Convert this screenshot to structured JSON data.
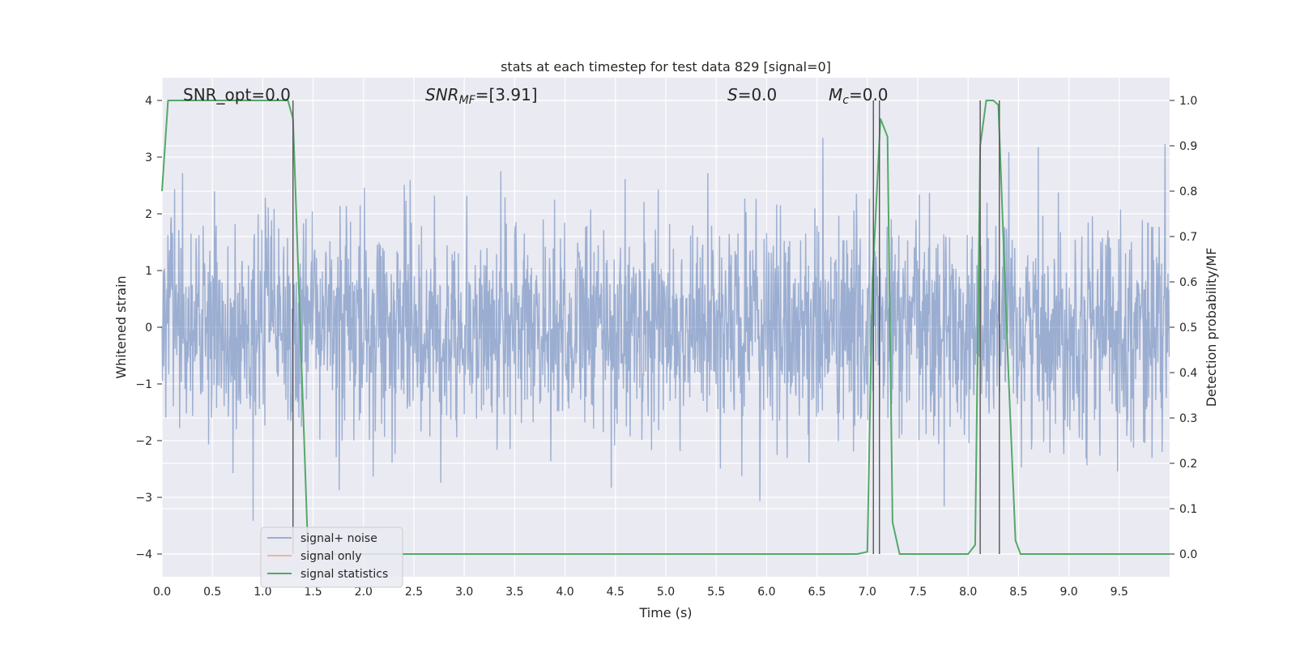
{
  "chart_data": {
    "type": "line",
    "title": "stats at each timestep for test data 829 [signal=0]",
    "xlabel": "Time (s)",
    "ylabel_left": "Whitened strain",
    "ylabel_right": "Detection probability/MF",
    "xlim": [
      0,
      10
    ],
    "ylim_left": [
      -4.4,
      4.4
    ],
    "ylim_right": [
      -0.05,
      1.05
    ],
    "x_ticks": [
      "0.0",
      "0.5",
      "1.0",
      "1.5",
      "2.0",
      "2.5",
      "3.0",
      "3.5",
      "4.0",
      "4.5",
      "5.0",
      "5.5",
      "6.0",
      "6.5",
      "7.0",
      "7.5",
      "8.0",
      "8.5",
      "9.0",
      "9.5"
    ],
    "x_tick_values": [
      0,
      0.5,
      1,
      1.5,
      2,
      2.5,
      3,
      3.5,
      4,
      4.5,
      5,
      5.5,
      6,
      6.5,
      7,
      7.5,
      8,
      8.5,
      9,
      9.5
    ],
    "y_ticks_left": [
      "4",
      "3",
      "2",
      "1",
      "0",
      "−1",
      "−2",
      "−3",
      "−4"
    ],
    "y_tick_values_left": [
      4,
      3,
      2,
      1,
      0,
      -1,
      -2,
      -3,
      -4
    ],
    "y_ticks_right": [
      "1.0",
      "0.9",
      "0.8",
      "0.7",
      "0.6",
      "0.5",
      "0.4",
      "0.3",
      "0.2",
      "0.1",
      "0.0"
    ],
    "y_tick_values_right": [
      1.0,
      0.9,
      0.8,
      0.7,
      0.6,
      0.5,
      0.4,
      0.3,
      0.2,
      0.1,
      0.0
    ],
    "grid": true,
    "background": "#eaeaf2",
    "legend_placement": "lower-left",
    "annotations": {
      "snr_opt": "SNR_opt=0.0",
      "snr_mf_prefix": "SNR",
      "snr_mf_sub": "MF",
      "snr_mf_suffix": "=[3.91]",
      "s_prefix": "S",
      "s_suffix": "=0.0",
      "mc_prefix": "M",
      "mc_sub": "c",
      "mc_suffix": "=0.0"
    },
    "series": [
      {
        "name": "signal+ noise",
        "color": "#4c72b0",
        "opacity": 0.5,
        "description_kind": "noise",
        "sample_rate_points": 2400,
        "noise_std": 0.95,
        "range": [
          -4.05,
          3.95
        ]
      },
      {
        "name": "signal only",
        "color": "#dd8452",
        "opacity": 0.5,
        "x": [],
        "y": []
      },
      {
        "name": "signal statistics",
        "color": "#55a868",
        "axis": "right",
        "x": [
          0.0,
          0.06,
          0.12,
          0.3,
          0.6,
          1.0,
          1.25,
          1.3,
          1.45,
          1.6,
          2.0,
          3.0,
          5.0,
          6.9,
          7.0,
          7.05,
          7.13,
          7.2,
          7.25,
          7.32,
          7.5,
          8.0,
          8.07,
          8.12,
          8.18,
          8.25,
          8.3,
          8.4,
          8.47,
          8.52,
          9.0,
          10.0
        ],
        "y": [
          0.8,
          1.0,
          1.0,
          1.0,
          1.0,
          1.0,
          1.0,
          0.96,
          0.0,
          0.0,
          0.0,
          0.0,
          0.0,
          0.0,
          0.005,
          0.6,
          0.96,
          0.92,
          0.07,
          0.0,
          0.0,
          0.0,
          0.02,
          0.9,
          1.0,
          1.0,
          0.99,
          0.4,
          0.03,
          0.0,
          0.0,
          0.0
        ]
      }
    ],
    "vertical_lines": [
      1.3,
      7.06,
      7.12,
      8.12,
      8.31
    ]
  }
}
